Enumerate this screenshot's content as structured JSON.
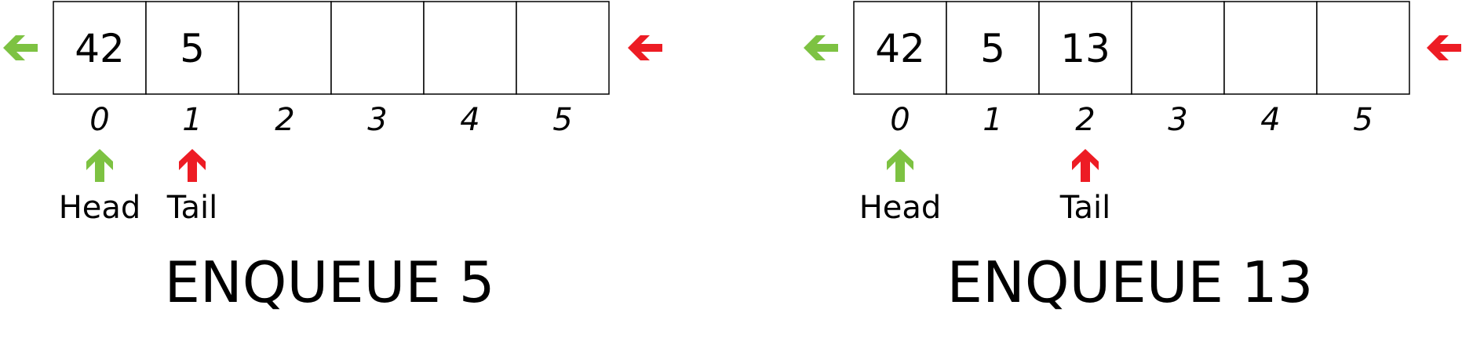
{
  "colors": {
    "head": "#7dc242",
    "tail": "#ed1c24",
    "border": "#000000"
  },
  "panels": [
    {
      "cells": [
        "42",
        "5",
        "",
        "",
        "",
        ""
      ],
      "indices": [
        "0",
        "1",
        "2",
        "3",
        "4",
        "5"
      ],
      "head_index": 0,
      "tail_index": 1,
      "head_label": "Head",
      "tail_label": "Tail",
      "caption": "ENQUEUE 5"
    },
    {
      "cells": [
        "42",
        "5",
        "13",
        "",
        "",
        ""
      ],
      "indices": [
        "0",
        "1",
        "2",
        "3",
        "4",
        "5"
      ],
      "head_index": 0,
      "tail_index": 2,
      "head_label": "Head",
      "tail_label": "Tail",
      "caption": "ENQUEUE 13"
    }
  ]
}
